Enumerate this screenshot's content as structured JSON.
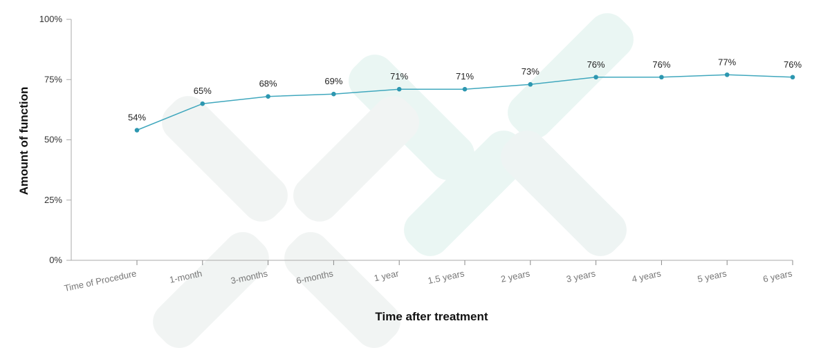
{
  "chart_data": {
    "type": "line",
    "categories": [
      "Time of Procedure",
      "1-month",
      "3-months",
      "6-months",
      "1 year",
      "1.5 years",
      "2 years",
      "3 years",
      "4 years",
      "5 years",
      "6 years"
    ],
    "values": [
      54,
      65,
      68,
      69,
      71,
      71,
      73,
      76,
      76,
      77,
      76
    ],
    "data_labels": [
      "54%",
      "65%",
      "68%",
      "69%",
      "71%",
      "71%",
      "73%",
      "76%",
      "76%",
      "77%",
      "76%"
    ],
    "ylim": [
      0,
      100
    ],
    "yticks": [
      0,
      25,
      50,
      75,
      100
    ],
    "ytick_labels": [
      "0%",
      "25%",
      "50%",
      "75%",
      "100%"
    ],
    "xlabel": "Time after treatment",
    "ylabel": "Amount of function",
    "grid": false,
    "colors": {
      "line": "#3fa7bd",
      "marker": "#2d97b0",
      "axis": "#888888",
      "watermark": "#e9f5f3"
    }
  }
}
